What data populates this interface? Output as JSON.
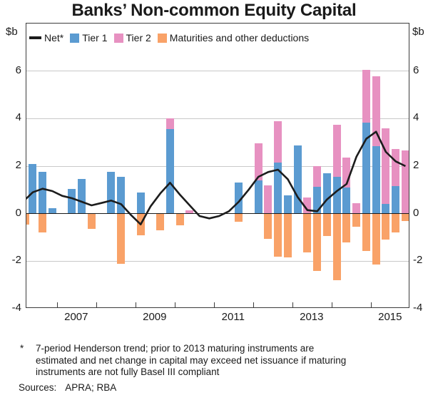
{
  "title": "Banks’ Non-common Equity Capital",
  "y_axis": {
    "unit_label": "$b",
    "tick_labels": [
      6,
      4,
      2,
      0,
      -2,
      -4
    ],
    "gridlines": [
      6,
      4,
      2,
      -2
    ],
    "min": -4,
    "max": 8
  },
  "x_axis": {
    "tick_years": [
      2007,
      2008,
      2009,
      2010,
      2011,
      2012,
      2013,
      2014,
      2015
    ],
    "year_labels": [
      "2007",
      "2009",
      "2011",
      "2013",
      "2015"
    ]
  },
  "chart_data": {
    "type": "stacked-bar+line",
    "title": "Banks’ Non-common Equity Capital",
    "ylabel": "$b",
    "ylim": [
      -4,
      8
    ],
    "gridline_step": 2,
    "legend_position": "top-inside",
    "categories": [
      "2006 Q1",
      "2006 Q2",
      "2006 Q3",
      "2006 Q4",
      "2007 Q1",
      "2007 Q2",
      "2007 Q3",
      "2007 Q4",
      "2008 Q1",
      "2008 Q2",
      "2008 Q3",
      "2008 Q4",
      "2009 Q1",
      "2009 Q2",
      "2009 Q3",
      "2009 Q4",
      "2010 Q1",
      "2010 Q2",
      "2010 Q3",
      "2010 Q4",
      "2011 Q1",
      "2011 Q2",
      "2011 Q3",
      "2011 Q4",
      "2012 Q1",
      "2012 Q2",
      "2012 Q3",
      "2012 Q4",
      "2013 Q1",
      "2013 Q2",
      "2013 Q3",
      "2013 Q4",
      "2014 Q1",
      "2014 Q2",
      "2014 Q3",
      "2014 Q4",
      "2015 Q1",
      "2015 Q2",
      "2015 Q3",
      "2015 Q4"
    ],
    "series": [
      {
        "name": "Net*",
        "type": "line",
        "color": "#1c1c1c",
        "values": [
          0.5,
          0.9,
          1.05,
          0.95,
          0.75,
          0.65,
          0.5,
          0.35,
          0.45,
          0.55,
          0.4,
          -0.05,
          -0.45,
          0.3,
          0.85,
          1.3,
          0.8,
          0.35,
          -0.1,
          -0.2,
          -0.1,
          0.1,
          0.5,
          1.0,
          1.55,
          1.75,
          1.85,
          1.45,
          0.7,
          0.15,
          0.1,
          0.6,
          0.95,
          1.25,
          2.4,
          3.15,
          3.45,
          2.6,
          2.2,
          2.0
        ]
      },
      {
        "name": "Tier 1",
        "type": "bar",
        "color": "#5b9bd1",
        "values": [
          0,
          2.1,
          1.75,
          0.22,
          0,
          1.05,
          1.45,
          0,
          0,
          1.75,
          1.55,
          0,
          0.9,
          0,
          0,
          3.55,
          0,
          0,
          0,
          0,
          0,
          0,
          1.3,
          0,
          1.4,
          0,
          2.15,
          0.77,
          2.88,
          0,
          1.13,
          1.7,
          1.55,
          1.1,
          0,
          3.82,
          2.85,
          0.4,
          1.17,
          0
        ]
      },
      {
        "name": "Tier 2",
        "type": "bar",
        "color": "#e791c1",
        "values": [
          0,
          0,
          0,
          0,
          0,
          0,
          0,
          0,
          0,
          0,
          0,
          0,
          0,
          0,
          0,
          0.45,
          0,
          0.15,
          0,
          0,
          0,
          0,
          0,
          0,
          1.55,
          1.2,
          1.75,
          0,
          0,
          0.68,
          0.87,
          0,
          2.2,
          1.25,
          0.45,
          2.22,
          2.94,
          3.18,
          1.55,
          2.65
        ]
      },
      {
        "name": "Maturities and other deductions",
        "type": "bar",
        "color": "#f9a268",
        "values": [
          -0.45,
          0,
          -0.8,
          0,
          0,
          0,
          0,
          -0.65,
          0,
          0,
          -2.1,
          0,
          -0.9,
          0,
          -0.7,
          0,
          -0.5,
          0,
          0,
          0,
          0,
          0,
          -0.35,
          0,
          0,
          -1.05,
          -1.8,
          -1.85,
          0,
          -1.63,
          -2.4,
          -0.93,
          -2.8,
          -1.2,
          -0.55,
          -1.57,
          -2.15,
          -1.1,
          -0.8,
          -0.3
        ]
      }
    ]
  },
  "footnote": {
    "marker": "*",
    "lines": [
      "7-period Henderson trend; prior to 2013 maturing instruments are",
      "estimated and net change in capital may exceed net issuance if maturing",
      "instruments are not fully Basel III compliant"
    ]
  },
  "sources_label": "Sources:",
  "sources_value": "APRA; RBA"
}
